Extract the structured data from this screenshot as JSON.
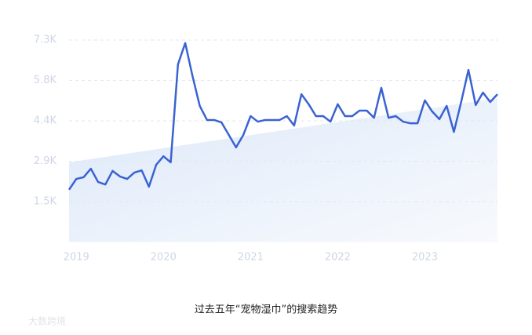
{
  "chart_data": {
    "type": "line",
    "title": "过去五年“宠物湿巾”的搜索趋势",
    "watermark": "大数跨境",
    "categories": [
      null,
      "2019",
      null,
      null,
      null,
      null,
      null,
      null,
      null,
      null,
      null,
      null,
      null,
      "2020",
      null,
      null,
      null,
      null,
      null,
      null,
      null,
      null,
      null,
      null,
      null,
      "2021",
      null,
      null,
      null,
      null,
      null,
      null,
      null,
      null,
      null,
      null,
      null,
      "2022",
      null,
      null,
      null,
      null,
      null,
      null,
      null,
      null,
      null,
      null,
      null,
      "2023",
      null,
      null,
      null,
      null,
      null,
      null,
      null,
      null,
      null,
      null
    ],
    "values": [
      1890,
      2280,
      2340,
      2650,
      2170,
      2080,
      2570,
      2370,
      2280,
      2510,
      2590,
      2000,
      2790,
      3100,
      2880,
      6420,
      7190,
      6000,
      4920,
      4410,
      4410,
      4320,
      3870,
      3420,
      3870,
      4550,
      4350,
      4410,
      4410,
      4410,
      4550,
      4210,
      5340,
      4980,
      4550,
      4550,
      4350,
      4980,
      4550,
      4550,
      4750,
      4750,
      4490,
      5570,
      4490,
      4550,
      4350,
      4290,
      4290,
      5120,
      4720,
      4440,
      4920,
      3980,
      5060,
      6220,
      4950,
      5400,
      5060,
      5340
    ],
    "trend": [
      2880,
      5200
    ],
    "color": "#3a63d1",
    "ylim": [
      0,
      7300
    ],
    "yticks": [
      {
        "value": 1460,
        "label": "1.5K"
      },
      {
        "value": 2920,
        "label": "2.9K"
      },
      {
        "value": 4380,
        "label": "4.4K"
      },
      {
        "value": 5840,
        "label": "5.8K"
      },
      {
        "value": 7300,
        "label": "7.3K"
      }
    ],
    "grid": true
  }
}
